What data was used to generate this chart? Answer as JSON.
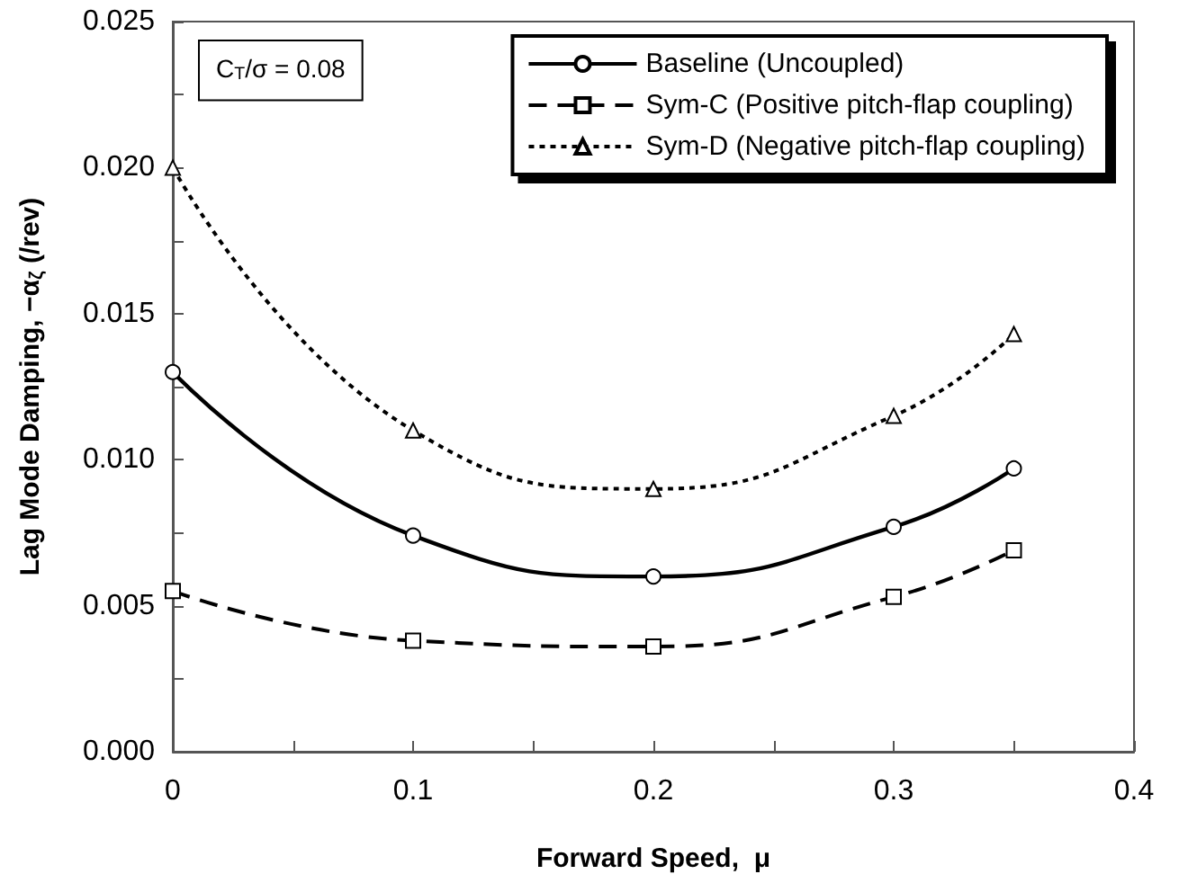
{
  "chart_data": {
    "type": "line",
    "xlabel": "Forward Speed,  μ",
    "ylabel": "Lag Mode Damping, −α$_{ζ}$ (/rev)",
    "x": [
      0,
      0.1,
      0.2,
      0.3,
      0.35
    ],
    "series": [
      {
        "name": "Baseline (Uncoupled)",
        "color": "#000000",
        "values": [
          0.013,
          0.0074,
          0.006,
          0.0077,
          0.0097
        ],
        "marker": "circle",
        "line_style": "solid"
      },
      {
        "name": "Sym-C (Positive pitch-flap coupling)",
        "color": "#000000",
        "values": [
          0.0055,
          0.0038,
          0.0036,
          0.0053,
          0.0069
        ],
        "marker": "square",
        "line_style": "dashed"
      },
      {
        "name": "Sym-D (Negative pitch-flap coupling)",
        "color": "#000000",
        "values": [
          0.02,
          0.011,
          0.009,
          0.0115,
          0.0143
        ],
        "marker": "triangle",
        "line_style": "dotted"
      }
    ],
    "xlim": [
      0,
      0.4
    ],
    "xticks": [
      0,
      {
        "value": 0.05,
        "label": null
      },
      0.1,
      {
        "value": 0.15,
        "label": null
      },
      0.2,
      {
        "value": 0.25,
        "label": null
      },
      0.3,
      {
        "value": 0.35,
        "label": null
      },
      0.4
    ],
    "ylim": [
      0,
      0.025
    ],
    "yticks": [
      {
        "value": 0,
        "label": "0.000"
      },
      {
        "value": 0.0025,
        "label": null
      },
      0.005,
      {
        "value": 0.0075,
        "label": null
      },
      {
        "value": 0.01,
        "label": "0.010"
      },
      {
        "value": 0.0125,
        "label": null
      },
      0.015,
      {
        "value": 0.0175,
        "label": null
      },
      {
        "value": 0.02,
        "label": "0.020"
      },
      {
        "value": 0.0225,
        "label": null
      },
      0.025
    ],
    "grid": false,
    "legend": "top right",
    "annotations": [
      "C$_{T}$/σ = 0.08"
    ]
  }
}
